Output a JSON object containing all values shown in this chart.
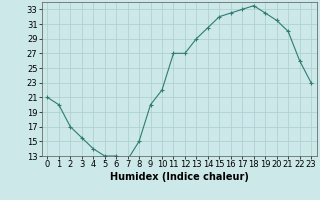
{
  "x": [
    0,
    1,
    2,
    3,
    4,
    5,
    6,
    7,
    8,
    9,
    10,
    11,
    12,
    13,
    14,
    15,
    16,
    17,
    18,
    19,
    20,
    21,
    22,
    23
  ],
  "y": [
    21,
    20,
    17,
    15.5,
    14,
    13,
    13,
    12.5,
    15,
    20,
    22,
    27,
    27,
    29,
    30.5,
    32,
    32.5,
    33,
    33.5,
    32.5,
    31.5,
    30,
    26,
    23
  ],
  "xlabel": "Humidex (Indice chaleur)",
  "ylim": [
    13,
    34
  ],
  "xlim": [
    -0.5,
    23.5
  ],
  "yticks": [
    13,
    15,
    17,
    19,
    21,
    23,
    25,
    27,
    29,
    31,
    33
  ],
  "xticks": [
    0,
    1,
    2,
    3,
    4,
    5,
    6,
    7,
    8,
    9,
    10,
    11,
    12,
    13,
    14,
    15,
    16,
    17,
    18,
    19,
    20,
    21,
    22,
    23
  ],
  "line_color": "#2e7d6e",
  "marker": "+",
  "bg_color": "#cce8e8",
  "grid_color": "#aacece",
  "axis_bg": "#cce8e8",
  "tick_fontsize": 6,
  "xlabel_fontsize": 7,
  "linewidth": 0.8,
  "markersize": 3,
  "markeredgewidth": 0.8
}
